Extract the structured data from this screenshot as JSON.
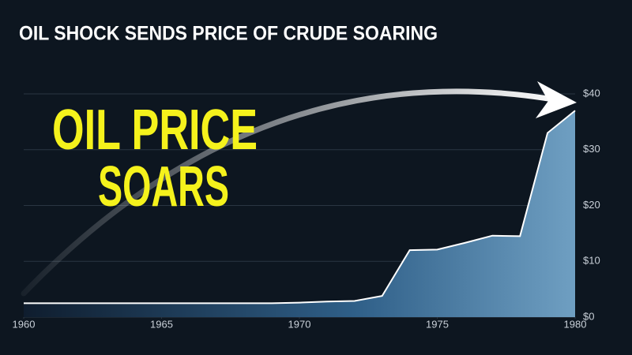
{
  "chart_data": {
    "type": "area",
    "title": "OIL SHOCK SENDS PRICE OF CRUDE SOARING",
    "annotation": [
      "OIL PRICE",
      "SOARS"
    ],
    "x": [
      1960,
      1961,
      1962,
      1963,
      1964,
      1965,
      1966,
      1967,
      1968,
      1969,
      1970,
      1971,
      1972,
      1973,
      1974,
      1975,
      1976,
      1977,
      1978,
      1979,
      1980
    ],
    "values": [
      2.5,
      2.5,
      2.5,
      2.5,
      2.5,
      2.5,
      2.5,
      2.5,
      2.5,
      2.5,
      2.6,
      2.8,
      2.9,
      3.8,
      12,
      12.1,
      13.3,
      14.6,
      14.5,
      33,
      37
    ],
    "color": "#6a9bc0",
    "line_color": "#ffffff",
    "xlim": [
      1960,
      1980
    ],
    "xticks": [
      1960,
      1965,
      1970,
      1975,
      1980
    ],
    "ylim": [
      0,
      40
    ],
    "yticks": [
      {
        "value": 0,
        "label": "$0"
      },
      {
        "value": 10,
        "label": "$10"
      },
      {
        "value": 20,
        "label": "$20"
      },
      {
        "value": 30,
        "label": "$30"
      },
      {
        "value": 40,
        "label": "$40"
      }
    ],
    "grid": true
  }
}
